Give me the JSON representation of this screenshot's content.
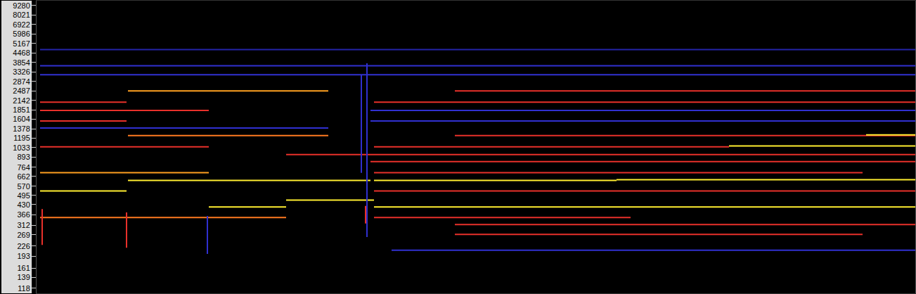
{
  "chart_data": {
    "type": "line",
    "log": "y",
    "grid": false,
    "tick_labels": "y",
    "xlim": [
      0,
      1250
    ],
    "ylim": [
      109,
      10000
    ],
    "yticks": [
      118,
      139,
      161,
      193,
      226,
      269,
      312,
      366,
      430,
      495,
      570,
      662,
      764,
      893,
      1033,
      1195,
      1378,
      1604,
      1851,
      2142,
      2487,
      2874,
      3326,
      3854,
      4468,
      5167,
      5986,
      6922,
      8021,
      9280
    ],
    "series": [
      {
        "color": "#ffee30",
        "x": [
          5,
          128
        ],
        "values": [
          530,
          530
        ]
      },
      {
        "color": "#ffa020",
        "x": [
          5,
          245
        ],
        "values": [
          702,
          702
        ]
      },
      {
        "color": "#ff7a20",
        "x": [
          5,
          355
        ],
        "values": [
          351,
          351
        ]
      },
      {
        "color": "#e8302a",
        "x": [
          5,
          245
        ],
        "values": [
          1047,
          1047
        ]
      },
      {
        "color": "#e8302a",
        "x": [
          5,
          128
        ],
        "values": [
          2089,
          2089
        ]
      },
      {
        "color": "#ffa020",
        "x": [
          130,
          415
        ],
        "values": [
          2483,
          2483
        ]
      },
      {
        "color": "#e8302a",
        "x": [
          5,
          128
        ],
        "values": [
          1561,
          1561
        ]
      },
      {
        "color": "#e8302a",
        "x": [
          5,
          245
        ],
        "values": [
          1836,
          1836
        ]
      },
      {
        "color": "#ff7a20",
        "x": [
          130,
          415
        ],
        "values": [
          1244,
          1244
        ]
      },
      {
        "color": "#ffee30",
        "x": [
          130,
          475
        ],
        "values": [
          623,
          623
        ]
      },
      {
        "color": "#ffee30",
        "x": [
          245,
          355
        ],
        "values": [
          413,
          413
        ]
      },
      {
        "color": "#ffee30",
        "x": [
          355,
          480
        ],
        "values": [
          460,
          460
        ]
      },
      {
        "color": "#3030d0",
        "x": [
          5,
          415
        ],
        "values": [
          1400,
          1400
        ]
      },
      {
        "color": "#3030d0",
        "x": [
          5,
          1250
        ],
        "values": [
          3184,
          3184
        ]
      },
      {
        "color": "#3030d0",
        "x": [
          5,
          1250
        ],
        "values": [
          3664,
          3664
        ]
      },
      {
        "color": "#2424a8",
        "x": [
          5,
          1250
        ],
        "values": [
          4697,
          4697
        ]
      },
      {
        "color": "#ffee30",
        "x": [
          480,
          825
        ],
        "values": [
          623,
          623
        ]
      },
      {
        "color": "#ffee30",
        "x": [
          825,
          1250
        ],
        "values": [
          630,
          630
        ]
      },
      {
        "color": "#ffee30",
        "x": [
          480,
          935
        ],
        "values": [
          413,
          413
        ]
      },
      {
        "color": "#ffee30",
        "x": [
          935,
          1250
        ],
        "values": [
          413,
          413
        ]
      },
      {
        "color": "#e8302a",
        "x": [
          480,
          845
        ],
        "values": [
          351,
          351
        ]
      },
      {
        "color": "#e8302a",
        "x": [
          480,
          1175
        ],
        "values": [
          702,
          702
        ]
      },
      {
        "color": "#e8302a",
        "x": [
          475,
          1250
        ],
        "values": [
          834,
          834
        ]
      },
      {
        "color": "#e8302a",
        "x": [
          480,
          985
        ],
        "values": [
          1047,
          1047
        ]
      },
      {
        "color": "#ffee30",
        "x": [
          985,
          1250
        ],
        "values": [
          1060,
          1060
        ]
      },
      {
        "color": "#e8302a",
        "x": [
          595,
          1250
        ],
        "values": [
          1244,
          1244
        ]
      },
      {
        "color": "#e8302a",
        "x": [
          355,
          1250
        ],
        "values": [
          929,
          929
        ]
      },
      {
        "color": "#e8302a",
        "x": [
          595,
          1250
        ],
        "values": [
          2483,
          2483
        ]
      },
      {
        "color": "#e8302a",
        "x": [
          480,
          1250
        ],
        "values": [
          2089,
          2089
        ]
      },
      {
        "color": "#e8302a",
        "x": [
          480,
          1250
        ],
        "values": [
          530,
          530
        ]
      },
      {
        "color": "#e8302a",
        "x": [
          595,
          1250
        ],
        "values": [
          315,
          315
        ]
      },
      {
        "color": "#e8302a",
        "x": [
          595,
          1175
        ],
        "values": [
          271,
          271
        ]
      },
      {
        "color": "#3030d0",
        "x": [
          505,
          1250
        ],
        "values": [
          212,
          212
        ]
      },
      {
        "color": "#3030d0",
        "x": [
          475,
          1250
        ],
        "values": [
          1836,
          1836
        ]
      },
      {
        "color": "#3030d0",
        "x": [
          475,
          1250
        ],
        "values": [
          1561,
          1561
        ]
      },
      {
        "color": "#ffee30",
        "x": [
          1180,
          1250
        ],
        "values": [
          1260,
          1260
        ]
      },
      {
        "color": "#e8302a",
        "x": [
          8,
          8
        ],
        "values": [
          230,
          400
        ]
      },
      {
        "color": "#e8302a",
        "x": [
          128,
          128
        ],
        "values": [
          220,
          380
        ]
      },
      {
        "color": "#3030d0",
        "x": [
          243,
          243
        ],
        "values": [
          200,
          360
        ]
      },
      {
        "color": "#3030d0",
        "x": [
          470,
          470
        ],
        "values": [
          260,
          3800
        ]
      },
      {
        "color": "#3030d0",
        "x": [
          462,
          462
        ],
        "values": [
          700,
          3200
        ]
      },
      {
        "color": "#e8302a",
        "x": [
          468,
          468
        ],
        "values": [
          320,
          420
        ]
      }
    ]
  }
}
